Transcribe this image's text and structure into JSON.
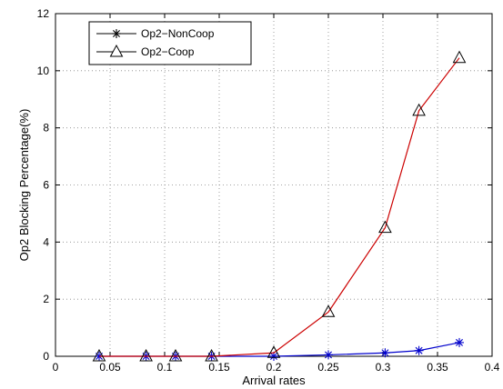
{
  "chart_data": {
    "type": "line",
    "title": "",
    "xlabel": "Arrival rates",
    "ylabel": "Op2 Blocking Percentage(%)",
    "xlim": [
      0,
      0.4
    ],
    "ylim": [
      0,
      12
    ],
    "xticks": [
      0,
      0.05,
      0.1,
      0.15,
      0.2,
      0.25,
      0.3,
      0.35,
      0.4
    ],
    "yticks": [
      0,
      2,
      4,
      6,
      8,
      10,
      12
    ],
    "grid": true,
    "legend_position": "top-left",
    "x": [
      0.04,
      0.083,
      0.11,
      0.143,
      0.2,
      0.25,
      0.302,
      0.333,
      0.37
    ],
    "series": [
      {
        "name": "Op2−NonCoop",
        "marker": "asterisk",
        "color": "#0000cc",
        "values": [
          0,
          0,
          0,
          0,
          0,
          0.05,
          0.12,
          0.2,
          0.48
        ]
      },
      {
        "name": "Op2−Coop",
        "marker": "triangle",
        "color": "#cc0000",
        "values": [
          0,
          0,
          0,
          0,
          0.12,
          1.55,
          4.5,
          8.6,
          10.45
        ]
      }
    ]
  }
}
